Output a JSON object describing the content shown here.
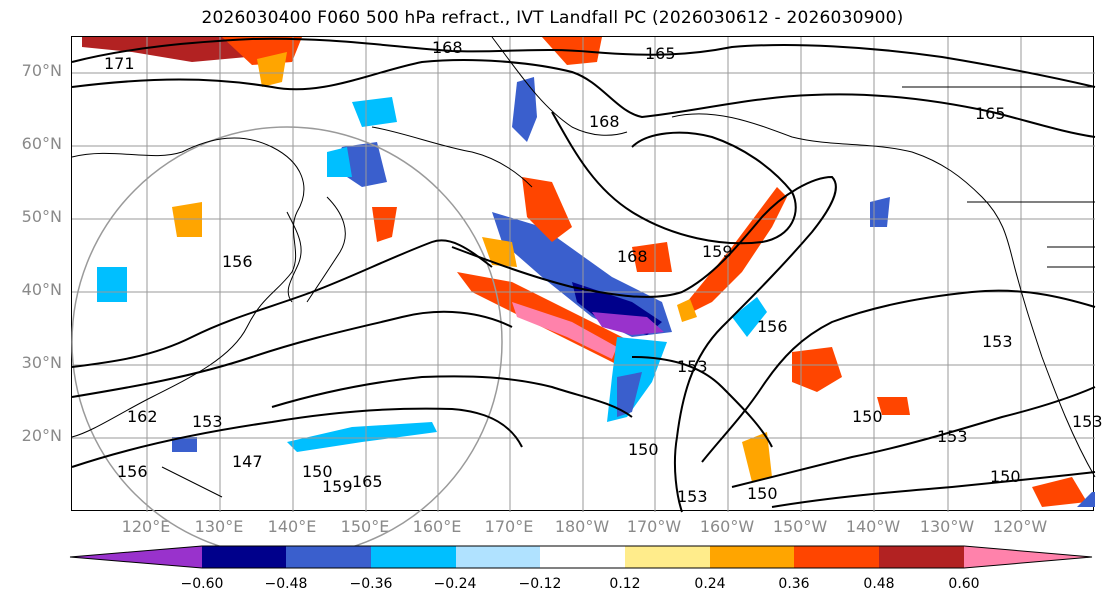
{
  "title": "2026030400 F060 500 hPa refract., IVT Landfall PC (2026030612 - 2026030900)",
  "lat_labels": [
    "70°N",
    "60°N",
    "50°N",
    "40°N",
    "30°N",
    "20°N"
  ],
  "lon_labels": [
    "120°E",
    "130°E",
    "140°E",
    "150°E",
    "160°E",
    "170°E",
    "180°W",
    "170°W",
    "160°W",
    "150°W",
    "140°W",
    "130°W",
    "120°W"
  ],
  "colorbar": {
    "ticks": [
      "−0.60",
      "−0.48",
      "−0.36",
      "−0.24",
      "−0.12",
      "0.12",
      "0.24",
      "0.36",
      "0.48",
      "0.60"
    ],
    "colors": [
      "#9932cc",
      "#00008b",
      "#3a5fcd",
      "#00bfff",
      "#b0e2ff",
      "#ffffff",
      "#ffec8b",
      "#ffa500",
      "#ff4500",
      "#b22222",
      "#ff82ab"
    ]
  },
  "contour_labels": [
    "171",
    "168",
    "165",
    "168",
    "165",
    "168",
    "159",
    "156",
    "153",
    "150",
    "153",
    "150",
    "153",
    "150",
    "156",
    "153",
    "147",
    "150",
    "165",
    "153",
    "150",
    "153",
    "156",
    "159",
    "162"
  ],
  "colors": {
    "grid": "#9a9a9a",
    "coast": "#000000",
    "contour": "#000000",
    "axis_label": "#8a8a8a"
  }
}
